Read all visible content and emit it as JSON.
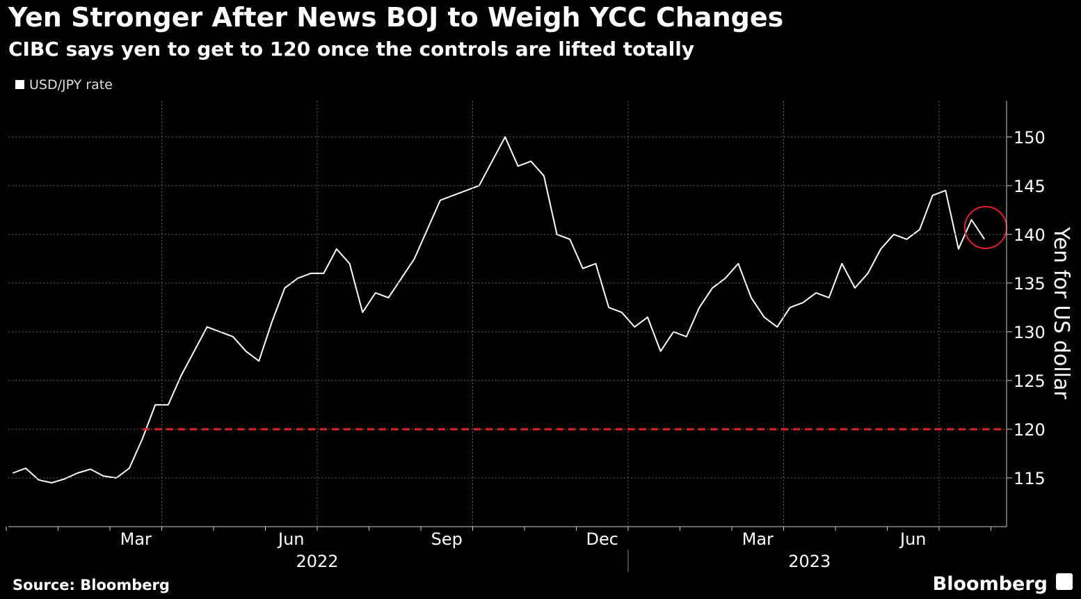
{
  "chart_data": {
    "type": "line",
    "title": "Yen Stronger After News BOJ to Weigh YCC Changes",
    "subtitle": "CIBC says yen to get to 120 once the controls are lifted totally",
    "y_label": "Yen for US dollar",
    "source": "Source: Bloomberg",
    "brand": "Bloomberg",
    "x": [
      "2022-01",
      "2022-01",
      "2022-01",
      "2022-01",
      "2022-02",
      "2022-02",
      "2022-02",
      "2022-02",
      "2022-03",
      "2022-03",
      "2022-03",
      "2022-03",
      "2022-04",
      "2022-04",
      "2022-04",
      "2022-04",
      "2022-05",
      "2022-05",
      "2022-05",
      "2022-05",
      "2022-06",
      "2022-06",
      "2022-06",
      "2022-06",
      "2022-07",
      "2022-07",
      "2022-07",
      "2022-07",
      "2022-08",
      "2022-08",
      "2022-08",
      "2022-08",
      "2022-09",
      "2022-09",
      "2022-09",
      "2022-09",
      "2022-10",
      "2022-10",
      "2022-10",
      "2022-10",
      "2022-11",
      "2022-11",
      "2022-11",
      "2022-11",
      "2022-12",
      "2022-12",
      "2022-12",
      "2022-12",
      "2023-01",
      "2023-01",
      "2023-01",
      "2023-01",
      "2023-02",
      "2023-02",
      "2023-02",
      "2023-02",
      "2023-03",
      "2023-03",
      "2023-03",
      "2023-03",
      "2023-04",
      "2023-04",
      "2023-04",
      "2023-04",
      "2023-05",
      "2023-05",
      "2023-05",
      "2023-05",
      "2023-06",
      "2023-06",
      "2023-06",
      "2023-06",
      "2023-07",
      "2023-07",
      "2023-07",
      "2023-07"
    ],
    "series": [
      {
        "name": "USD/JPY rate",
        "color": "#ffffff",
        "values": [
          115.5,
          116.0,
          114.8,
          114.5,
          114.9,
          115.5,
          115.9,
          115.2,
          115.0,
          116.0,
          119.0,
          122.5,
          122.5,
          125.5,
          128.0,
          130.5,
          130.0,
          129.5,
          128.0,
          127.0,
          131.0,
          134.5,
          135.5,
          136.0,
          136.0,
          138.5,
          137.0,
          132.0,
          134.0,
          133.5,
          135.5,
          137.5,
          140.5,
          143.5,
          144.0,
          144.5,
          145.0,
          147.5,
          150.0,
          147.0,
          147.5,
          146.0,
          140.0,
          139.5,
          136.5,
          137.0,
          132.5,
          132.0,
          130.5,
          131.5,
          128.0,
          130.0,
          129.5,
          132.5,
          134.5,
          135.5,
          137.0,
          133.5,
          131.5,
          130.5,
          132.5,
          133.0,
          134.0,
          133.5,
          137.0,
          134.5,
          136.0,
          138.5,
          140.0,
          139.5,
          140.5,
          144.0,
          144.5,
          138.5,
          141.5,
          139.5
        ]
      }
    ],
    "reference_line": {
      "value": 120,
      "color": "#e8202a"
    },
    "xlim": [
      "2022-01",
      "2023-07"
    ],
    "xticks": [
      {
        "value": "2022-03",
        "label": "Mar"
      },
      {
        "value": "2022-06",
        "label": "Jun"
      },
      {
        "value": "2022-09",
        "label": "Sep"
      },
      {
        "value": "2022-12",
        "label": "Dec"
      },
      {
        "value": "2023-03",
        "label": "Mar"
      },
      {
        "value": "2023-06",
        "label": "Jun"
      }
    ],
    "years": [
      "2022",
      "2023"
    ],
    "ylim": [
      110,
      153.7
    ],
    "yticks": [
      115,
      120,
      125,
      130,
      135,
      140,
      145,
      150
    ],
    "grid": true
  }
}
